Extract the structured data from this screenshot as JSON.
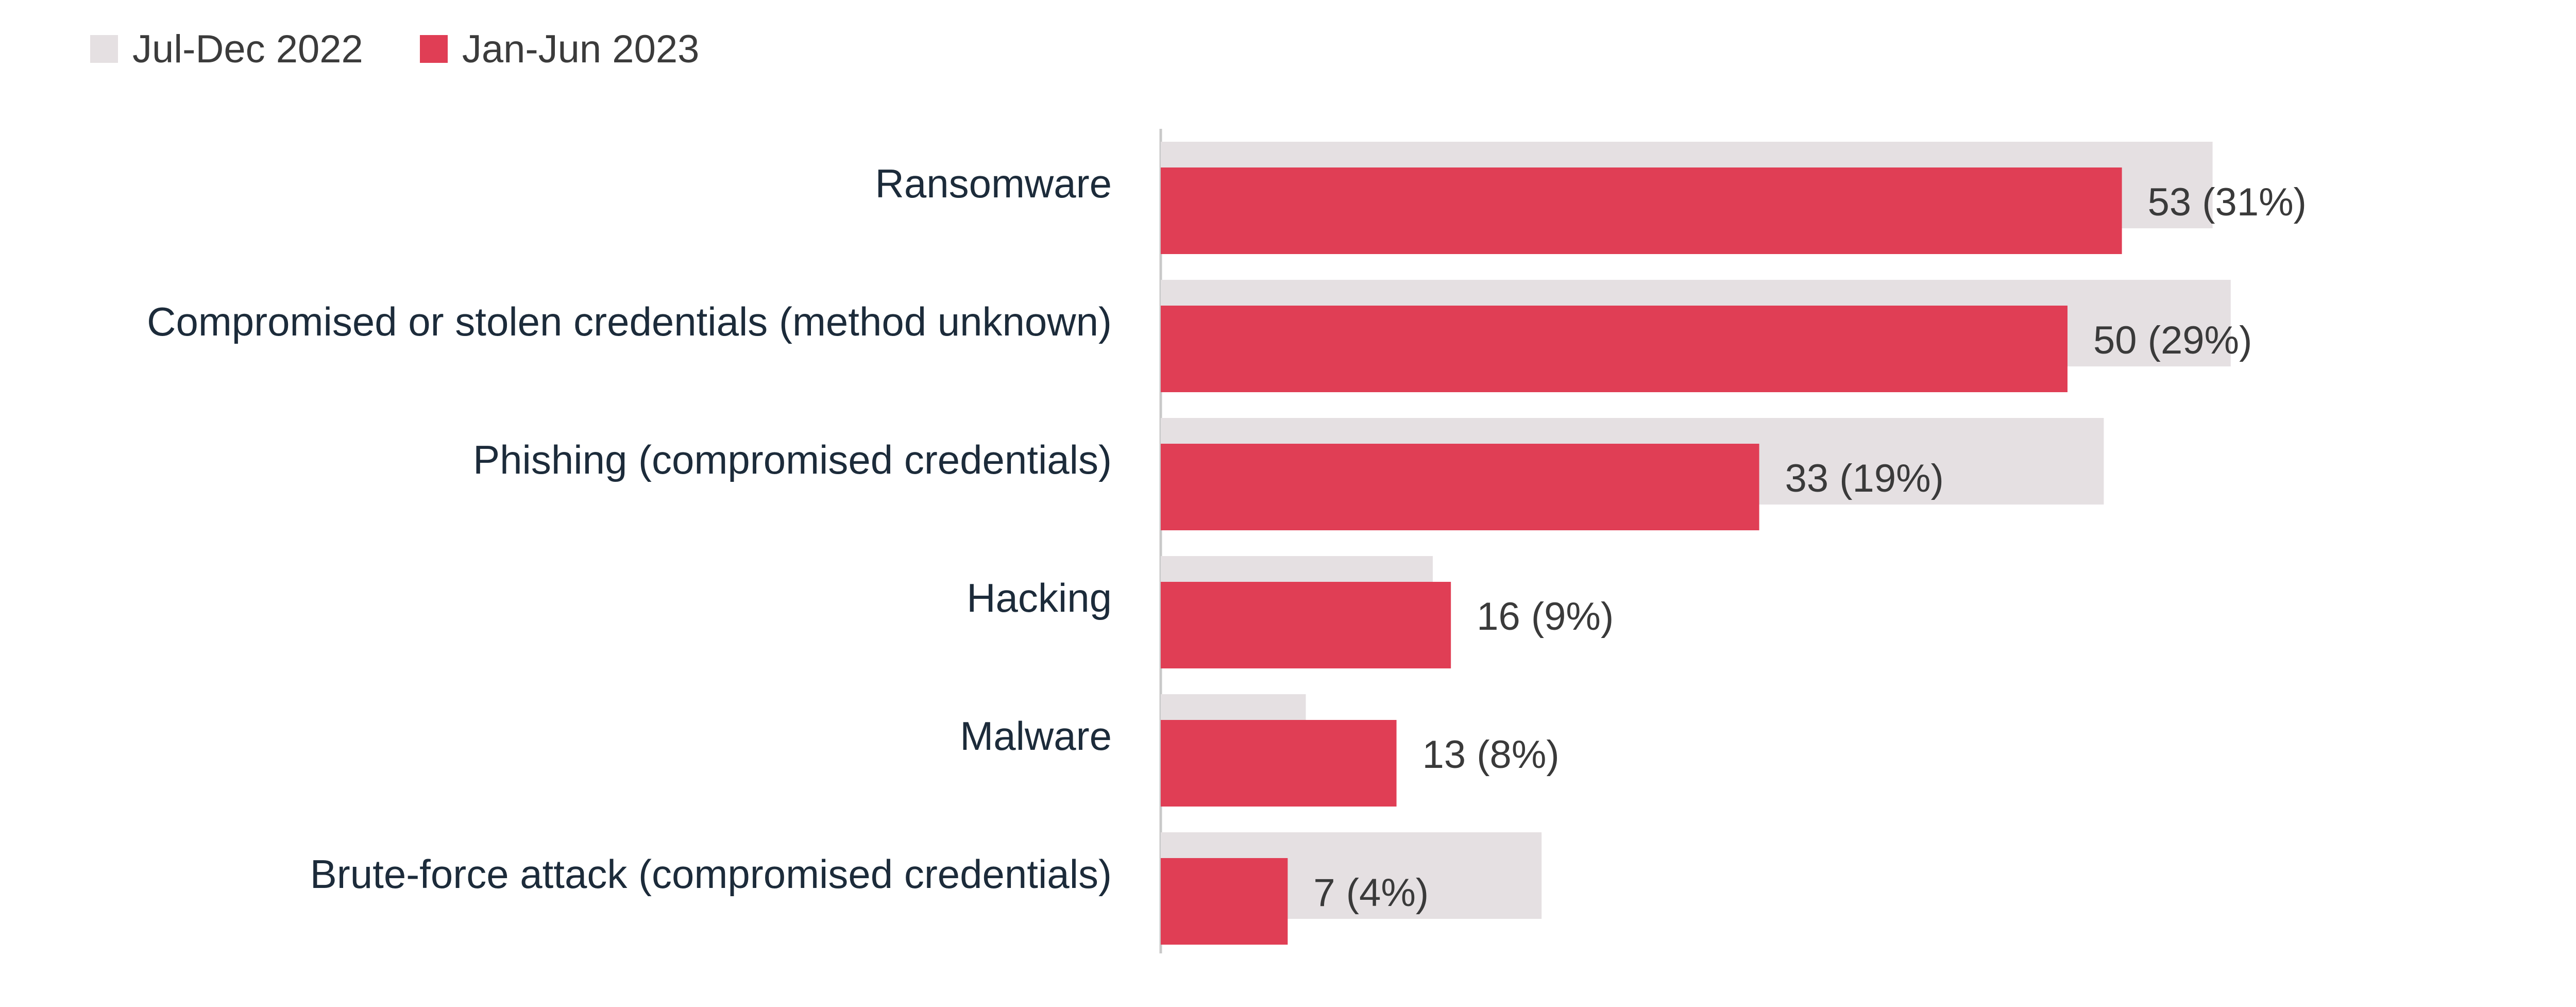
{
  "chart_data": {
    "type": "bar",
    "orientation": "horizontal",
    "categories": [
      "Ransomware",
      "Compromised or stolen credentials (method unknown)",
      "Phishing (compromised credentials)",
      "Hacking",
      "Malware",
      "Brute-force attack (compromised credentials)"
    ],
    "series": [
      {
        "name": "Jul-Dec 2022",
        "color": "#e5e0e2",
        "values": [
          58,
          59,
          52,
          15,
          8,
          21
        ]
      },
      {
        "name": "Jan-Jun 2023",
        "color": "#e03e55",
        "values": [
          53,
          50,
          33,
          16,
          13,
          7
        ],
        "labels": [
          "53 (31%)",
          "50 (29%)",
          "33 (19%)",
          "16 (9%)",
          "13 (8%)",
          "7 (4%)"
        ]
      }
    ],
    "xlim": [
      0,
      82
    ],
    "legend_position": "top-left",
    "grid": false,
    "title": "",
    "xlabel": "",
    "ylabel": ""
  }
}
